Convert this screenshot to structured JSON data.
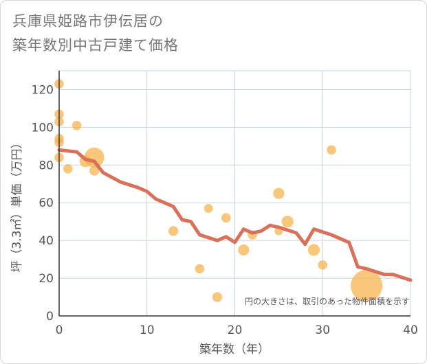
{
  "chart_data": {
    "type": "scatter",
    "title": [
      "兵庫県姫路市伊伝居の",
      "築年数別中古戸建て価格"
    ],
    "xlabel": "築年数（年）",
    "ylabel": "坪（3.3㎡）単価（万円）",
    "xlim": [
      0,
      40
    ],
    "ylim": [
      0,
      130
    ],
    "xticks": [
      0,
      10,
      20,
      30,
      40
    ],
    "yticks": [
      0,
      20,
      40,
      60,
      80,
      100,
      120
    ],
    "grid": true,
    "note": "円の大きさは、取引のあった物件面積を示す",
    "colors": {
      "bubble": "#f5b24a",
      "line": "#d9705a",
      "grid": "#c9d3df"
    },
    "bubbles": [
      {
        "x": 0,
        "y": 123,
        "size": 1
      },
      {
        "x": 0,
        "y": 107,
        "size": 1
      },
      {
        "x": 0,
        "y": 103,
        "size": 1
      },
      {
        "x": 0,
        "y": 94,
        "size": 1
      },
      {
        "x": 0,
        "y": 92,
        "size": 1
      },
      {
        "x": 0,
        "y": 84,
        "size": 1
      },
      {
        "x": 1,
        "y": 78,
        "size": 1
      },
      {
        "x": 2,
        "y": 101,
        "size": 1
      },
      {
        "x": 3,
        "y": 82,
        "size": 1.6
      },
      {
        "x": 4,
        "y": 84,
        "size": 4.5
      },
      {
        "x": 4,
        "y": 77,
        "size": 1.1
      },
      {
        "x": 13,
        "y": 45,
        "size": 1.1
      },
      {
        "x": 16,
        "y": 25,
        "size": 1
      },
      {
        "x": 17,
        "y": 57,
        "size": 0.9
      },
      {
        "x": 18,
        "y": 10,
        "size": 1.1
      },
      {
        "x": 19,
        "y": 52,
        "size": 1
      },
      {
        "x": 21,
        "y": 35,
        "size": 1.4
      },
      {
        "x": 22,
        "y": 43,
        "size": 1
      },
      {
        "x": 25,
        "y": 65,
        "size": 1.4
      },
      {
        "x": 25,
        "y": 45,
        "size": 0.8
      },
      {
        "x": 26,
        "y": 50,
        "size": 1.6
      },
      {
        "x": 29,
        "y": 35,
        "size": 1.6
      },
      {
        "x": 30,
        "y": 27,
        "size": 1
      },
      {
        "x": 31,
        "y": 88,
        "size": 1
      },
      {
        "x": 35,
        "y": 16,
        "size": 11.5
      }
    ],
    "trend": {
      "x": [
        0,
        2,
        3,
        4,
        5,
        7,
        9,
        10,
        11,
        13,
        14,
        15,
        16,
        18,
        19,
        20,
        21,
        22,
        23,
        24,
        25,
        27,
        28,
        29,
        31,
        33,
        34,
        35,
        37,
        38,
        40
      ],
      "y": [
        88,
        87,
        83,
        82,
        76,
        71,
        68,
        66,
        62,
        58,
        51,
        50,
        43,
        40,
        42,
        39,
        46,
        44,
        45,
        48,
        47,
        44,
        38,
        46,
        43,
        39,
        26,
        25,
        22,
        22,
        19
      ]
    }
  }
}
